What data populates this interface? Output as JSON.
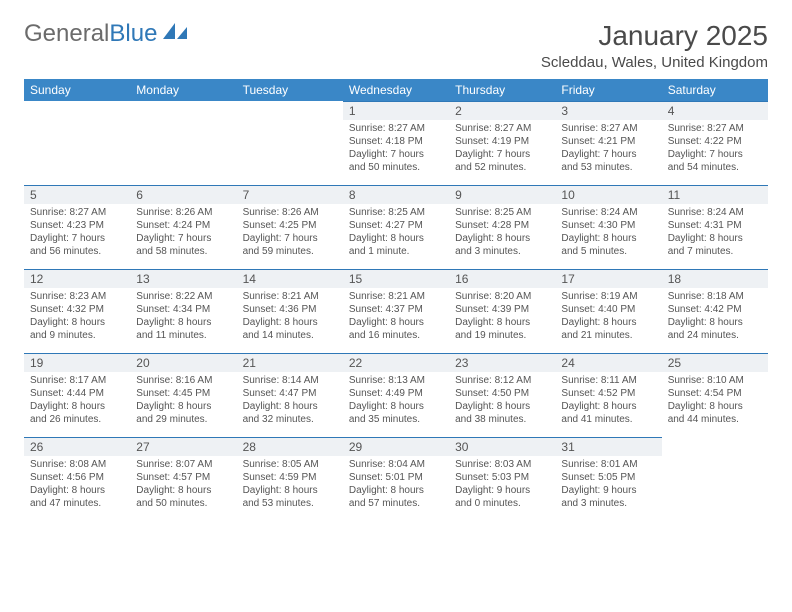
{
  "colors": {
    "header_bg": "#3a87c7",
    "header_text": "#ffffff",
    "daynum_bg": "#eef1f4",
    "daynum_border": "#2f78b7",
    "text": "#555555",
    "page_bg": "#ffffff",
    "logo_gray": "#6b6b6b",
    "logo_blue": "#2f78b7"
  },
  "logo": {
    "text1": "General",
    "text2": "Blue"
  },
  "title": "January 2025",
  "location": "Scleddau, Wales, United Kingdom",
  "day_headers": [
    "Sunday",
    "Monday",
    "Tuesday",
    "Wednesday",
    "Thursday",
    "Friday",
    "Saturday"
  ],
  "weeks": [
    [
      {
        "empty": true
      },
      {
        "empty": true
      },
      {
        "empty": true
      },
      {
        "num": "1",
        "sunrise": "Sunrise: 8:27 AM",
        "sunset": "Sunset: 4:18 PM",
        "daylight1": "Daylight: 7 hours",
        "daylight2": "and 50 minutes."
      },
      {
        "num": "2",
        "sunrise": "Sunrise: 8:27 AM",
        "sunset": "Sunset: 4:19 PM",
        "daylight1": "Daylight: 7 hours",
        "daylight2": "and 52 minutes."
      },
      {
        "num": "3",
        "sunrise": "Sunrise: 8:27 AM",
        "sunset": "Sunset: 4:21 PM",
        "daylight1": "Daylight: 7 hours",
        "daylight2": "and 53 minutes."
      },
      {
        "num": "4",
        "sunrise": "Sunrise: 8:27 AM",
        "sunset": "Sunset: 4:22 PM",
        "daylight1": "Daylight: 7 hours",
        "daylight2": "and 54 minutes."
      }
    ],
    [
      {
        "num": "5",
        "sunrise": "Sunrise: 8:27 AM",
        "sunset": "Sunset: 4:23 PM",
        "daylight1": "Daylight: 7 hours",
        "daylight2": "and 56 minutes."
      },
      {
        "num": "6",
        "sunrise": "Sunrise: 8:26 AM",
        "sunset": "Sunset: 4:24 PM",
        "daylight1": "Daylight: 7 hours",
        "daylight2": "and 58 minutes."
      },
      {
        "num": "7",
        "sunrise": "Sunrise: 8:26 AM",
        "sunset": "Sunset: 4:25 PM",
        "daylight1": "Daylight: 7 hours",
        "daylight2": "and 59 minutes."
      },
      {
        "num": "8",
        "sunrise": "Sunrise: 8:25 AM",
        "sunset": "Sunset: 4:27 PM",
        "daylight1": "Daylight: 8 hours",
        "daylight2": "and 1 minute."
      },
      {
        "num": "9",
        "sunrise": "Sunrise: 8:25 AM",
        "sunset": "Sunset: 4:28 PM",
        "daylight1": "Daylight: 8 hours",
        "daylight2": "and 3 minutes."
      },
      {
        "num": "10",
        "sunrise": "Sunrise: 8:24 AM",
        "sunset": "Sunset: 4:30 PM",
        "daylight1": "Daylight: 8 hours",
        "daylight2": "and 5 minutes."
      },
      {
        "num": "11",
        "sunrise": "Sunrise: 8:24 AM",
        "sunset": "Sunset: 4:31 PM",
        "daylight1": "Daylight: 8 hours",
        "daylight2": "and 7 minutes."
      }
    ],
    [
      {
        "num": "12",
        "sunrise": "Sunrise: 8:23 AM",
        "sunset": "Sunset: 4:32 PM",
        "daylight1": "Daylight: 8 hours",
        "daylight2": "and 9 minutes."
      },
      {
        "num": "13",
        "sunrise": "Sunrise: 8:22 AM",
        "sunset": "Sunset: 4:34 PM",
        "daylight1": "Daylight: 8 hours",
        "daylight2": "and 11 minutes."
      },
      {
        "num": "14",
        "sunrise": "Sunrise: 8:21 AM",
        "sunset": "Sunset: 4:36 PM",
        "daylight1": "Daylight: 8 hours",
        "daylight2": "and 14 minutes."
      },
      {
        "num": "15",
        "sunrise": "Sunrise: 8:21 AM",
        "sunset": "Sunset: 4:37 PM",
        "daylight1": "Daylight: 8 hours",
        "daylight2": "and 16 minutes."
      },
      {
        "num": "16",
        "sunrise": "Sunrise: 8:20 AM",
        "sunset": "Sunset: 4:39 PM",
        "daylight1": "Daylight: 8 hours",
        "daylight2": "and 19 minutes."
      },
      {
        "num": "17",
        "sunrise": "Sunrise: 8:19 AM",
        "sunset": "Sunset: 4:40 PM",
        "daylight1": "Daylight: 8 hours",
        "daylight2": "and 21 minutes."
      },
      {
        "num": "18",
        "sunrise": "Sunrise: 8:18 AM",
        "sunset": "Sunset: 4:42 PM",
        "daylight1": "Daylight: 8 hours",
        "daylight2": "and 24 minutes."
      }
    ],
    [
      {
        "num": "19",
        "sunrise": "Sunrise: 8:17 AM",
        "sunset": "Sunset: 4:44 PM",
        "daylight1": "Daylight: 8 hours",
        "daylight2": "and 26 minutes."
      },
      {
        "num": "20",
        "sunrise": "Sunrise: 8:16 AM",
        "sunset": "Sunset: 4:45 PM",
        "daylight1": "Daylight: 8 hours",
        "daylight2": "and 29 minutes."
      },
      {
        "num": "21",
        "sunrise": "Sunrise: 8:14 AM",
        "sunset": "Sunset: 4:47 PM",
        "daylight1": "Daylight: 8 hours",
        "daylight2": "and 32 minutes."
      },
      {
        "num": "22",
        "sunrise": "Sunrise: 8:13 AM",
        "sunset": "Sunset: 4:49 PM",
        "daylight1": "Daylight: 8 hours",
        "daylight2": "and 35 minutes."
      },
      {
        "num": "23",
        "sunrise": "Sunrise: 8:12 AM",
        "sunset": "Sunset: 4:50 PM",
        "daylight1": "Daylight: 8 hours",
        "daylight2": "and 38 minutes."
      },
      {
        "num": "24",
        "sunrise": "Sunrise: 8:11 AM",
        "sunset": "Sunset: 4:52 PM",
        "daylight1": "Daylight: 8 hours",
        "daylight2": "and 41 minutes."
      },
      {
        "num": "25",
        "sunrise": "Sunrise: 8:10 AM",
        "sunset": "Sunset: 4:54 PM",
        "daylight1": "Daylight: 8 hours",
        "daylight2": "and 44 minutes."
      }
    ],
    [
      {
        "num": "26",
        "sunrise": "Sunrise: 8:08 AM",
        "sunset": "Sunset: 4:56 PM",
        "daylight1": "Daylight: 8 hours",
        "daylight2": "and 47 minutes."
      },
      {
        "num": "27",
        "sunrise": "Sunrise: 8:07 AM",
        "sunset": "Sunset: 4:57 PM",
        "daylight1": "Daylight: 8 hours",
        "daylight2": "and 50 minutes."
      },
      {
        "num": "28",
        "sunrise": "Sunrise: 8:05 AM",
        "sunset": "Sunset: 4:59 PM",
        "daylight1": "Daylight: 8 hours",
        "daylight2": "and 53 minutes."
      },
      {
        "num": "29",
        "sunrise": "Sunrise: 8:04 AM",
        "sunset": "Sunset: 5:01 PM",
        "daylight1": "Daylight: 8 hours",
        "daylight2": "and 57 minutes."
      },
      {
        "num": "30",
        "sunrise": "Sunrise: 8:03 AM",
        "sunset": "Sunset: 5:03 PM",
        "daylight1": "Daylight: 9 hours",
        "daylight2": "and 0 minutes."
      },
      {
        "num": "31",
        "sunrise": "Sunrise: 8:01 AM",
        "sunset": "Sunset: 5:05 PM",
        "daylight1": "Daylight: 9 hours",
        "daylight2": "and 3 minutes."
      },
      {
        "empty": true
      }
    ]
  ]
}
